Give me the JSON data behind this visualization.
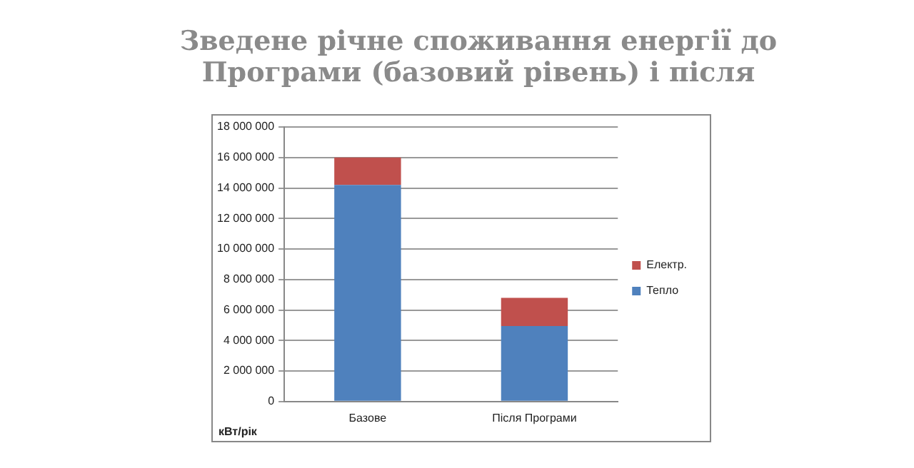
{
  "chart_data": {
    "type": "bar",
    "title": "Зведене річне споживання енергії до\nПрограми (базовий рівень) і після",
    "ylabel": "кВт/рік",
    "categories": [
      "Базове",
      "Після Програми"
    ],
    "stacked": true,
    "series": [
      {
        "name": "Тепло",
        "color": "#4f81bd",
        "values": [
          14200000,
          4950000
        ]
      },
      {
        "name": "Електр.",
        "color": "#c0504d",
        "values": [
          1800000,
          1850000
        ]
      }
    ],
    "ylim": [
      0,
      18000000
    ],
    "yticks": [
      {
        "value": 0,
        "label": "0"
      },
      {
        "value": 2000000,
        "label": "2 000 000"
      },
      {
        "value": 4000000,
        "label": "4 000 000"
      },
      {
        "value": 6000000,
        "label": "6 000 000"
      },
      {
        "value": 8000000,
        "label": "8 000 000"
      },
      {
        "value": 10000000,
        "label": "10 000 000"
      },
      {
        "value": 12000000,
        "label": "12 000 000"
      },
      {
        "value": 14000000,
        "label": "14 000 000"
      },
      {
        "value": 16000000,
        "label": "16 000 000"
      },
      {
        "value": 18000000,
        "label": "18 000 000"
      }
    ],
    "grid": "y",
    "legend": "right"
  }
}
